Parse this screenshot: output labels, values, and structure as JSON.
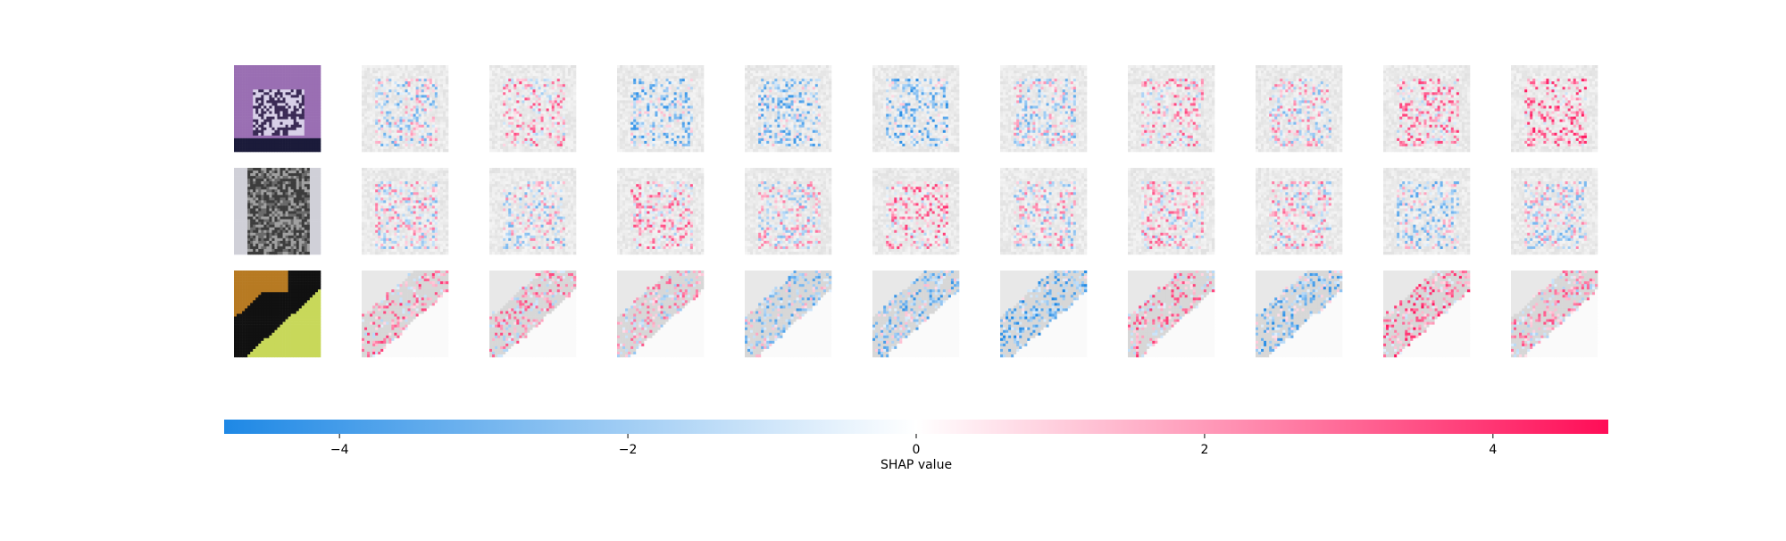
{
  "chart_data": {
    "type": "heatmap",
    "description_kind": "shap-image-plot",
    "rows": 3,
    "explanation_columns": 10,
    "input_images": [
      {
        "row": 1,
        "palette": [
          "#9a6fb3",
          "#3a2a55",
          "#d8d0e8",
          "#1b1b3a"
        ]
      },
      {
        "row": 2,
        "palette": [
          "#6a6a6a",
          "#3c3c3c",
          "#a0a0a0",
          "#d0d0d8"
        ]
      },
      {
        "row": 3,
        "palette": [
          "#b77a22",
          "#111111",
          "#c8d85a",
          "#6a5a20"
        ]
      }
    ],
    "colorbar": {
      "colormap": [
        "#1e88e5",
        "#ffffff",
        "#ff0d57"
      ],
      "vmin": -4.8,
      "vmax": 4.8,
      "ticks": [
        -4,
        -2,
        0,
        2,
        4
      ],
      "tick_labels": [
        "−4",
        "−2",
        "0",
        "2",
        "4"
      ],
      "label": "SHAP value"
    }
  }
}
